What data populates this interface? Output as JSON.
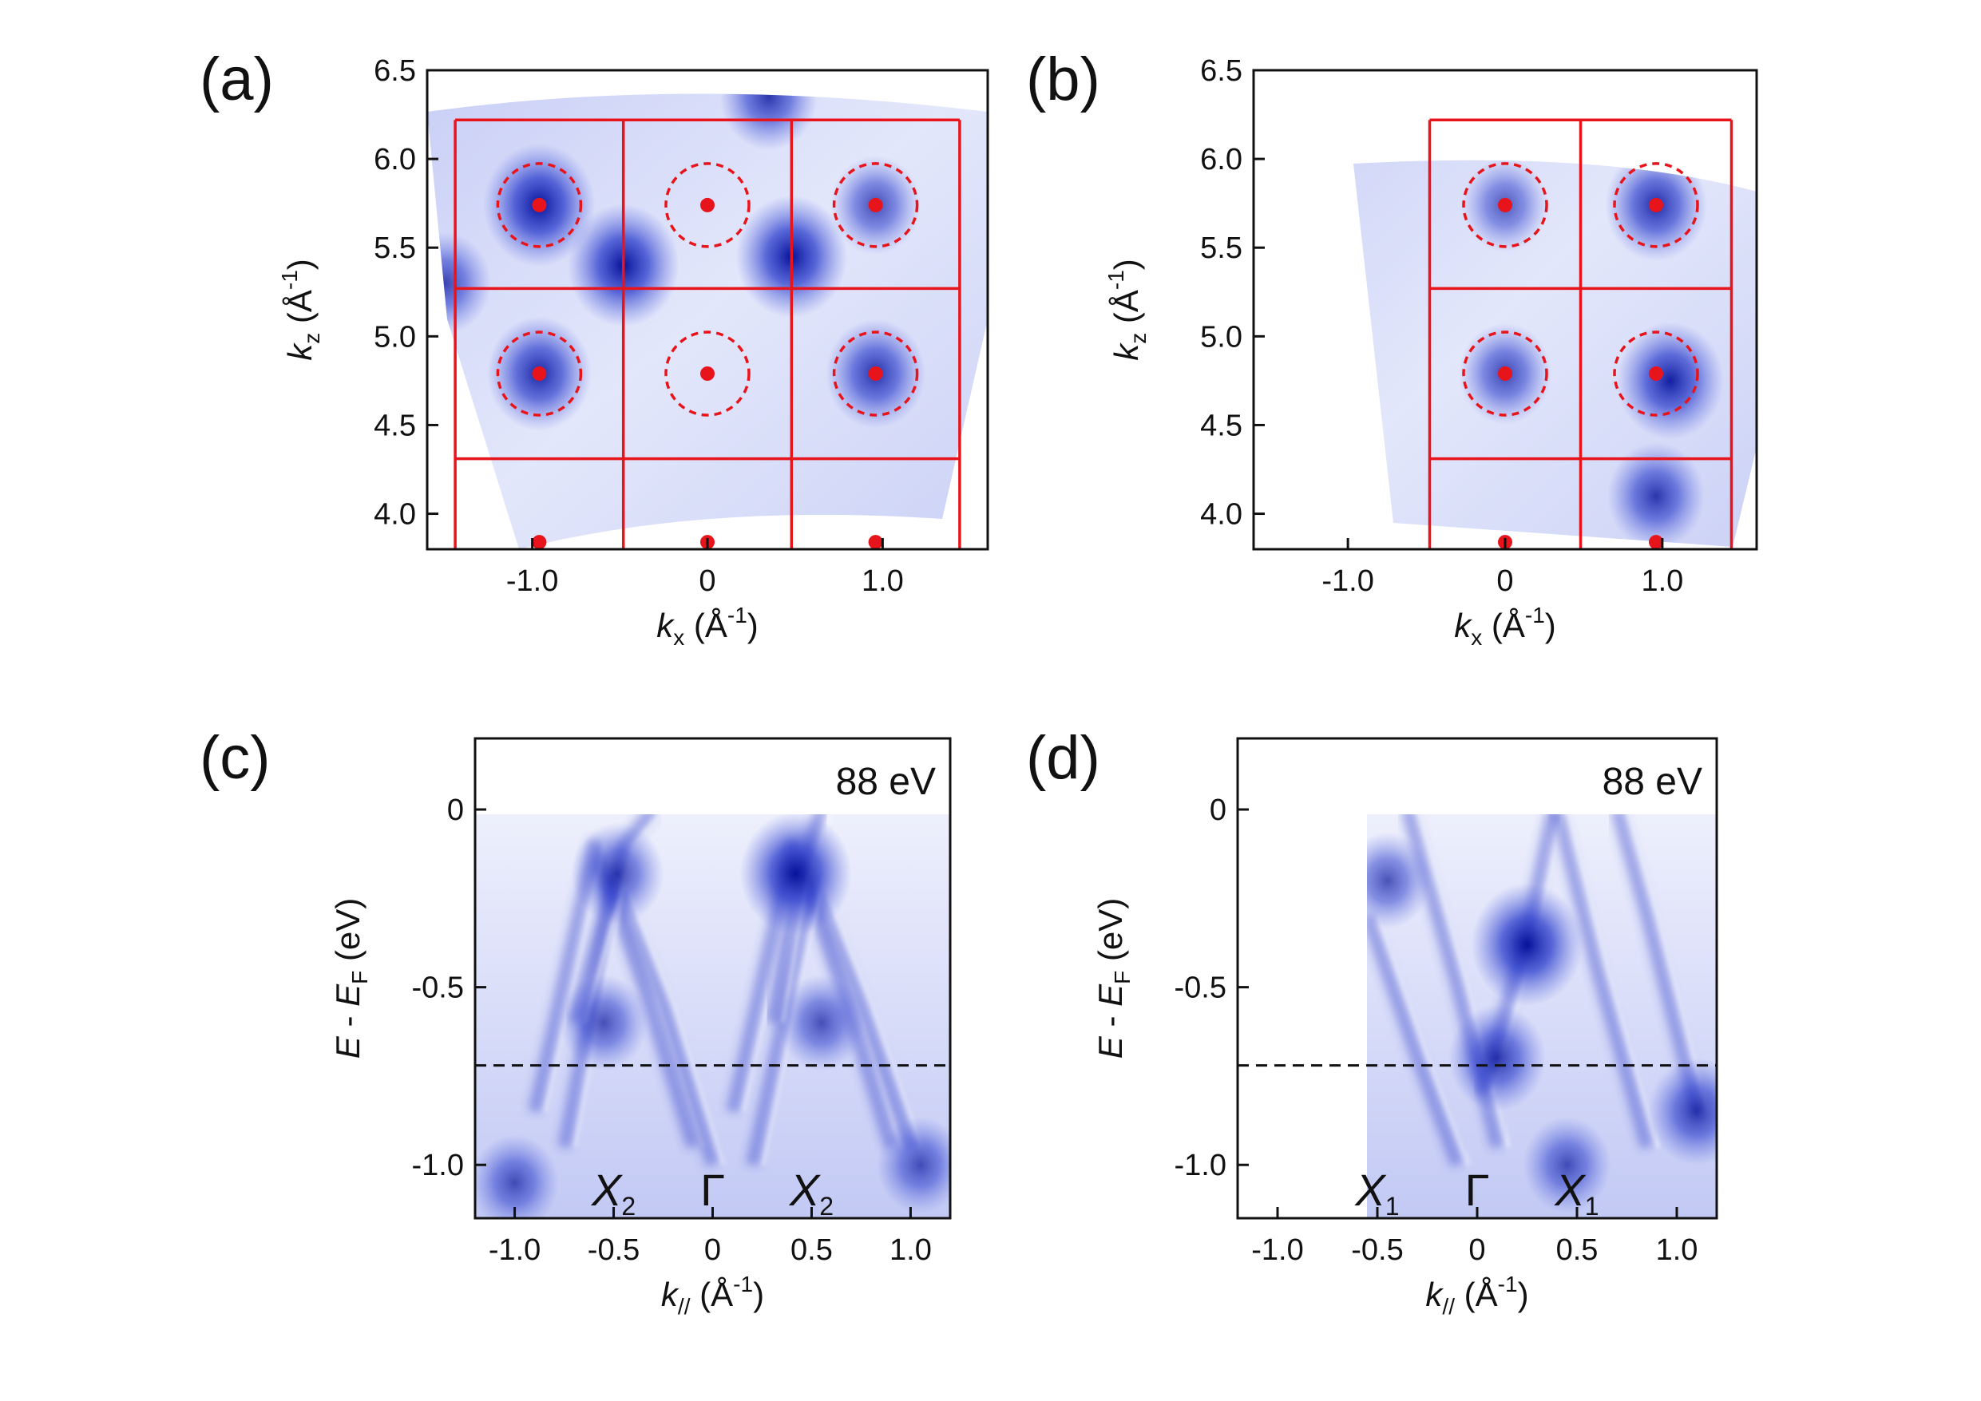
{
  "colors": {
    "map_dark": "#0a1aa8",
    "map_mid": "#4a5ad8",
    "map_light": "#dfe3fa",
    "bz_lines": "#e8141b",
    "axis": "#111111"
  },
  "icons": {
    "gamma_points": "filled-red-circle",
    "fermi_circles": "dashed-red-circle"
  },
  "panels": [
    {
      "label": "(a)",
      "chart_data": {
        "type": "heatmap",
        "xlabel_main": "k",
        "xlabel_sub": "x",
        "xlabel_unit": "(Å",
        "xlabel_exp": "-1",
        "xlabel_close": ")",
        "ylabel_main": "k",
        "ylabel_sub": "z",
        "ylabel_unit": "(Å",
        "ylabel_exp": "-1",
        "ylabel_close": ")",
        "xlim": [
          -1.6,
          1.6
        ],
        "ylim": [
          3.8,
          6.5
        ],
        "x_ticks": [
          {
            "v": -1.0,
            "label": "-1.0"
          },
          {
            "v": 0.0,
            "label": "0"
          },
          {
            "v": 1.0,
            "label": "1.0"
          }
        ],
        "y_ticks": [
          {
            "v": 4.0,
            "label": "4.0"
          },
          {
            "v": 4.5,
            "label": "4.5"
          },
          {
            "v": 5.0,
            "label": "5.0"
          },
          {
            "v": 5.5,
            "label": "5.5"
          },
          {
            "v": 6.0,
            "label": "6.0"
          },
          {
            "v": 6.5,
            "label": "6.5"
          }
        ],
        "bz_x": [
          -1.44,
          -0.48,
          0.48,
          1.44
        ],
        "bz_y": [
          4.31,
          5.27,
          6.22
        ],
        "gamma_points": [
          [
            -0.96,
            5.74
          ],
          [
            0.0,
            5.74
          ],
          [
            0.96,
            5.74
          ],
          [
            -0.96,
            4.79
          ],
          [
            0.0,
            4.79
          ],
          [
            0.96,
            4.79
          ],
          [
            -0.96,
            3.84
          ],
          [
            0.0,
            3.84
          ],
          [
            0.96,
            3.84
          ]
        ],
        "fermi_circles": [
          [
            -0.96,
            5.74
          ],
          [
            0.0,
            5.74
          ],
          [
            0.96,
            5.74
          ],
          [
            -0.96,
            4.79
          ],
          [
            0.0,
            4.79
          ],
          [
            0.96,
            4.79
          ]
        ],
        "hot_spots": [
          [
            -0.96,
            5.74,
            1.0
          ],
          [
            -0.96,
            4.79,
            0.85
          ],
          [
            0.96,
            4.79,
            0.75
          ],
          [
            0.96,
            5.74,
            0.55
          ],
          [
            -0.48,
            5.4,
            1.0
          ],
          [
            0.48,
            5.45,
            1.0
          ],
          [
            0.35,
            6.35,
            0.7
          ],
          [
            -1.5,
            5.3,
            0.6
          ]
        ]
      }
    },
    {
      "label": "(b)",
      "chart_data": {
        "type": "heatmap",
        "xlabel_main": "k",
        "xlabel_sub": "x",
        "xlabel_unit": "(Å",
        "xlabel_exp": "-1",
        "xlabel_close": ")",
        "ylabel_main": "k",
        "ylabel_sub": "z",
        "ylabel_unit": "(Å",
        "ylabel_exp": "-1",
        "ylabel_close": ")",
        "xlim": [
          -1.6,
          1.6
        ],
        "ylim": [
          3.8,
          6.5
        ],
        "x_ticks": [
          {
            "v": -1.0,
            "label": "-1.0"
          },
          {
            "v": 0.0,
            "label": "0"
          },
          {
            "v": 1.0,
            "label": "1.0"
          }
        ],
        "y_ticks": [
          {
            "v": 4.0,
            "label": "4.0"
          },
          {
            "v": 4.5,
            "label": "4.5"
          },
          {
            "v": 5.0,
            "label": "5.0"
          },
          {
            "v": 5.5,
            "label": "5.5"
          },
          {
            "v": 6.0,
            "label": "6.0"
          },
          {
            "v": 6.5,
            "label": "6.5"
          }
        ],
        "bz_x": [
          -0.48,
          0.48,
          1.44
        ],
        "bz_y": [
          4.31,
          5.27,
          6.22
        ],
        "gamma_points": [
          [
            0.0,
            5.74
          ],
          [
            0.96,
            5.74
          ],
          [
            0.0,
            4.79
          ],
          [
            0.96,
            4.79
          ],
          [
            0.0,
            3.84
          ],
          [
            0.96,
            3.84
          ]
        ],
        "fermi_circles": [
          [
            0.0,
            5.74
          ],
          [
            0.96,
            5.74
          ],
          [
            0.0,
            4.79
          ],
          [
            0.96,
            4.79
          ]
        ],
        "hot_spots": [
          [
            0.96,
            5.74,
            0.8
          ],
          [
            1.05,
            4.75,
            0.9
          ],
          [
            0.0,
            4.79,
            0.6
          ],
          [
            0.0,
            5.74,
            0.45
          ],
          [
            0.96,
            4.1,
            0.7
          ]
        ]
      }
    },
    {
      "label": "(c)",
      "chart_data": {
        "type": "heatmap",
        "annotation": "88 eV",
        "xlabel_main": "k",
        "xlabel_sub": "//",
        "xlabel_unit": "(Å",
        "xlabel_exp": "-1",
        "xlabel_close": ")",
        "ylabel_main": "E",
        "ylabel_mid": " - ",
        "ylabel_main2": "E",
        "ylabel_sub": "F",
        "ylabel_unit": " (eV)",
        "xlim": [
          -1.2,
          1.2
        ],
        "ylim": [
          -1.15,
          0.2
        ],
        "x_ticks": [
          {
            "v": -1.0,
            "label": "-1.0"
          },
          {
            "v": -0.5,
            "label": "-0.5"
          },
          {
            "v": 0.0,
            "label": "0"
          },
          {
            "v": 0.5,
            "label": "0.5"
          },
          {
            "v": 1.0,
            "label": "1.0"
          }
        ],
        "y_ticks": [
          {
            "v": 0.0,
            "label": "0"
          },
          {
            "v": -0.5,
            "label": "-0.5"
          },
          {
            "v": -1.0,
            "label": "-1.0"
          }
        ],
        "dashed_line_y": -0.72,
        "data_xlim": [
          -1.2,
          1.2
        ],
        "symmetry_points": [
          {
            "x": -0.5,
            "main": "X",
            "sub": "2"
          },
          {
            "x": 0.0,
            "main": "Γ",
            "sub": ""
          },
          {
            "x": 0.5,
            "main": "X",
            "sub": "2"
          }
        ],
        "bands": [
          [
            [
              -0.9,
              -0.85
            ],
            [
              -0.6,
              -0.1
            ],
            [
              -0.35,
              -0.5
            ],
            [
              -0.1,
              -0.95
            ]
          ],
          [
            [
              -0.75,
              -0.95
            ],
            [
              -0.5,
              -0.2
            ],
            [
              -0.25,
              -0.55
            ],
            [
              0.0,
              -1.0
            ]
          ],
          [
            [
              0.1,
              -0.85
            ],
            [
              0.4,
              -0.1
            ],
            [
              0.65,
              -0.5
            ],
            [
              0.9,
              -0.95
            ]
          ],
          [
            [
              0.2,
              -1.0
            ],
            [
              0.5,
              -0.2
            ],
            [
              0.75,
              -0.55
            ],
            [
              1.0,
              -0.95
            ]
          ],
          [
            [
              -0.7,
              -0.6
            ],
            [
              -0.45,
              -0.1
            ],
            [
              -0.3,
              0.0
            ]
          ],
          [
            [
              0.3,
              -0.6
            ],
            [
              0.42,
              -0.2
            ],
            [
              0.55,
              0.0
            ]
          ]
        ],
        "hot_spots": [
          [
            0.42,
            -0.18,
            1.0
          ],
          [
            -0.48,
            -0.18,
            0.6
          ],
          [
            -0.55,
            -0.6,
            0.5
          ],
          [
            0.55,
            -0.6,
            0.5
          ],
          [
            -1.0,
            -1.05,
            0.5
          ],
          [
            1.05,
            -1.0,
            0.5
          ]
        ]
      }
    },
    {
      "label": "(d)",
      "chart_data": {
        "type": "heatmap",
        "annotation": "88 eV",
        "xlabel_main": "k",
        "xlabel_sub": "//",
        "xlabel_unit": "(Å",
        "xlabel_exp": "-1",
        "xlabel_close": ")",
        "ylabel_main": "E",
        "ylabel_mid": " - ",
        "ylabel_main2": "E",
        "ylabel_sub": "F",
        "ylabel_unit": " (eV)",
        "xlim": [
          -1.2,
          1.2
        ],
        "ylim": [
          -1.15,
          0.2
        ],
        "x_ticks": [
          {
            "v": -1.0,
            "label": "-1.0"
          },
          {
            "v": -0.5,
            "label": "-0.5"
          },
          {
            "v": 0.0,
            "label": "0"
          },
          {
            "v": 0.5,
            "label": "0.5"
          },
          {
            "v": 1.0,
            "label": "1.0"
          }
        ],
        "y_ticks": [
          {
            "v": 0.0,
            "label": "0"
          },
          {
            "v": -0.5,
            "label": "-0.5"
          },
          {
            "v": -1.0,
            "label": "-1.0"
          }
        ],
        "dashed_line_y": -0.72,
        "data_xlim": [
          -0.6,
          1.2
        ],
        "symmetry_points": [
          {
            "x": -0.5,
            "main": "X",
            "sub": "1"
          },
          {
            "x": 0.0,
            "main": "Γ",
            "sub": ""
          },
          {
            "x": 0.5,
            "main": "X",
            "sub": "1"
          }
        ],
        "bands": [
          [
            [
              -0.35,
              0.0
            ],
            [
              -0.1,
              -0.5
            ],
            [
              0.1,
              -0.95
            ]
          ],
          [
            [
              0.02,
              -0.8
            ],
            [
              0.25,
              -0.35
            ],
            [
              0.38,
              0.0
            ]
          ],
          [
            [
              -0.55,
              -0.3
            ],
            [
              -0.3,
              -0.7
            ],
            [
              -0.1,
              -1.0
            ]
          ],
          [
            [
              0.4,
              0.0
            ],
            [
              0.6,
              -0.45
            ],
            [
              0.85,
              -0.95
            ]
          ],
          [
            [
              0.7,
              0.0
            ],
            [
              0.85,
              -0.3
            ],
            [
              1.1,
              -0.85
            ]
          ]
        ],
        "hot_spots": [
          [
            0.25,
            -0.38,
            1.0
          ],
          [
            0.1,
            -0.7,
            0.7
          ],
          [
            1.1,
            -0.85,
            0.7
          ],
          [
            -0.45,
            -0.2,
            0.5
          ],
          [
            0.45,
            -1.0,
            0.5
          ]
        ]
      }
    }
  ]
}
